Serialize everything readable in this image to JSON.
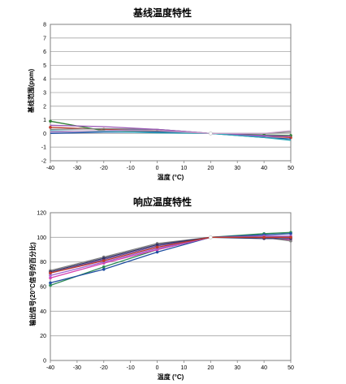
{
  "chart_data": [
    {
      "type": "line",
      "title": "基线温度特性",
      "xlabel": "温度 (°C)",
      "ylabel": "基线范围(ppm)",
      "x": [
        -40,
        -20,
        0,
        20,
        40,
        50
      ],
      "x_ticks": [
        "-40",
        "-30",
        "-20",
        "-10",
        "0",
        "10",
        "20",
        "30",
        "40",
        "50"
      ],
      "y_ticks": [
        "-2",
        "-1",
        "0",
        "1",
        "2",
        "3",
        "4",
        "5",
        "6",
        "7",
        "8"
      ],
      "xlim": [
        -40,
        50
      ],
      "ylim": [
        -2,
        8
      ],
      "grid": "horizontal",
      "series": [
        {
          "color": "#c0392b",
          "marker": "circle",
          "values": [
            0.45,
            0.3,
            0.2,
            0.0,
            -0.2,
            -0.3
          ]
        },
        {
          "color": "#2e7d32",
          "marker": "circle",
          "values": [
            0.9,
            0.2,
            0.15,
            0.0,
            -0.1,
            -0.15
          ]
        },
        {
          "color": "#1f4ea1",
          "marker": "none",
          "values": [
            0.0,
            0.1,
            0.1,
            0.0,
            -0.3,
            -0.4
          ]
        },
        {
          "color": "#7b68c8",
          "marker": "none",
          "values": [
            0.1,
            0.2,
            0.3,
            0.0,
            -0.2,
            -0.2
          ]
        },
        {
          "color": "#808080",
          "marker": "none",
          "values": [
            0.3,
            0.35,
            0.3,
            0.0,
            0.0,
            0.1
          ]
        },
        {
          "color": "#9b59b6",
          "marker": "none",
          "values": [
            0.6,
            0.5,
            0.3,
            0.0,
            -0.15,
            -0.2
          ]
        },
        {
          "color": "#2aa8b8",
          "marker": "none",
          "values": [
            0.2,
            0.15,
            0.05,
            0.0,
            -0.3,
            -0.5
          ]
        },
        {
          "color": "#c8a0c8",
          "marker": "none",
          "values": [
            0.15,
            0.2,
            0.2,
            0.0,
            0.0,
            0.2
          ]
        }
      ]
    },
    {
      "type": "line",
      "title": "响应温度特性",
      "xlabel": "温度 (°C)",
      "ylabel": "输出信号(20°C信号的百分比)",
      "x": [
        -40,
        -20,
        0,
        20,
        40,
        50
      ],
      "x_ticks": [
        "-40",
        "-30",
        "-20",
        "-10",
        "0",
        "10",
        "20",
        "30",
        "40",
        "50"
      ],
      "y_ticks": [
        "0",
        "20",
        "40",
        "60",
        "80",
        "100",
        "120"
      ],
      "xlim": [
        -40,
        50
      ],
      "ylim": [
        0,
        120
      ],
      "grid": "horizontal",
      "series": [
        {
          "color": "#2e8b57",
          "marker": "circle",
          "values": [
            61,
            76,
            90,
            100,
            103,
            104
          ]
        },
        {
          "color": "#1f4ea1",
          "marker": "circle",
          "values": [
            63,
            74,
            88,
            100,
            102,
            103
          ]
        },
        {
          "color": "#d63fb0",
          "marker": "circle",
          "values": [
            67,
            79,
            90,
            100,
            100,
            98
          ]
        },
        {
          "color": "#a064d0",
          "marker": "circle",
          "values": [
            69,
            80,
            91,
            100,
            101,
            101
          ]
        },
        {
          "color": "#6a4c9c",
          "marker": "circle",
          "values": [
            71,
            82,
            93,
            100,
            100,
            100
          ]
        },
        {
          "color": "#808080",
          "marker": "circle",
          "values": [
            73,
            84,
            95,
            100,
            100,
            97
          ]
        },
        {
          "color": "#333366",
          "marker": "circle",
          "values": [
            72,
            83,
            94,
            100,
            99,
            99
          ]
        },
        {
          "color": "#c0392b",
          "marker": "circle",
          "values": [
            71,
            81,
            92,
            100,
            100,
            100
          ]
        }
      ]
    }
  ]
}
